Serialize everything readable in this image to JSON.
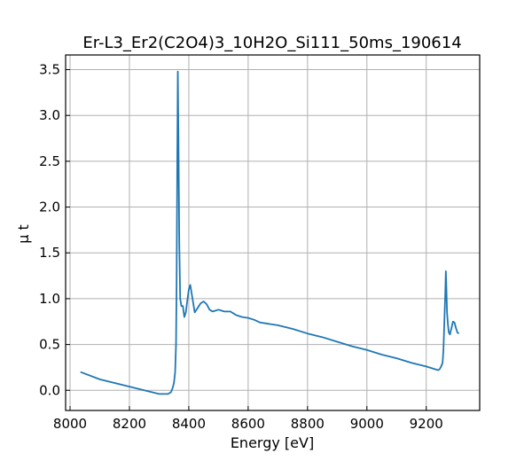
{
  "chart_data": {
    "type": "line",
    "title": "Er-L3_Er2(C2O4)3_10H2O_Si111_50ms_190614",
    "xlabel": "Energy [eV]",
    "ylabel": "μ t",
    "xlim": [
      7985,
      9380
    ],
    "ylim": [
      -0.22,
      3.66
    ],
    "xticks": [
      8000,
      8200,
      8400,
      8600,
      8800,
      9000,
      9200
    ],
    "xtick_labels": [
      "8000",
      "8200",
      "8400",
      "8600",
      "8800",
      "9000",
      "9200"
    ],
    "yticks": [
      0.0,
      0.5,
      1.0,
      1.5,
      2.0,
      2.5,
      3.0,
      3.5
    ],
    "ytick_labels": [
      "0.0",
      "0.5",
      "1.0",
      "1.5",
      "2.0",
      "2.5",
      "3.0",
      "3.5"
    ],
    "grid": true,
    "series": [
      {
        "color": "#1f77b4",
        "x": [
          8035,
          8100,
          8200,
          8300,
          8330,
          8340,
          8345,
          8350,
          8354,
          8357,
          8359,
          8361,
          8363,
          8365,
          8368,
          8371,
          8375,
          8380,
          8385,
          8390,
          8395,
          8400,
          8405,
          8410,
          8420,
          8430,
          8440,
          8450,
          8460,
          8470,
          8480,
          8490,
          8500,
          8510,
          8520,
          8530,
          8540,
          8550,
          8560,
          8580,
          8600,
          8620,
          8640,
          8660,
          8680,
          8700,
          8750,
          8800,
          8850,
          8900,
          8950,
          9000,
          9050,
          9100,
          9150,
          9200,
          9230,
          9240,
          9245,
          9250,
          9255,
          9258,
          9261,
          9264,
          9266,
          9268,
          9270,
          9273,
          9276,
          9280,
          9285,
          9290,
          9295,
          9300,
          9305,
          9310
        ],
        "y": [
          0.2,
          0.12,
          0.04,
          -0.04,
          -0.04,
          -0.02,
          0.02,
          0.08,
          0.2,
          0.5,
          1.2,
          2.4,
          3.48,
          2.8,
          1.6,
          1.0,
          0.92,
          0.92,
          0.8,
          0.85,
          0.98,
          1.1,
          1.15,
          1.05,
          0.85,
          0.9,
          0.95,
          0.97,
          0.94,
          0.88,
          0.86,
          0.87,
          0.88,
          0.87,
          0.86,
          0.86,
          0.86,
          0.84,
          0.82,
          0.8,
          0.79,
          0.77,
          0.74,
          0.73,
          0.72,
          0.71,
          0.67,
          0.62,
          0.58,
          0.53,
          0.48,
          0.44,
          0.39,
          0.35,
          0.3,
          0.26,
          0.23,
          0.22,
          0.23,
          0.26,
          0.3,
          0.45,
          0.75,
          1.05,
          1.3,
          1.1,
          0.85,
          0.72,
          0.63,
          0.61,
          0.68,
          0.75,
          0.74,
          0.68,
          0.63,
          0.62
        ]
      }
    ]
  }
}
